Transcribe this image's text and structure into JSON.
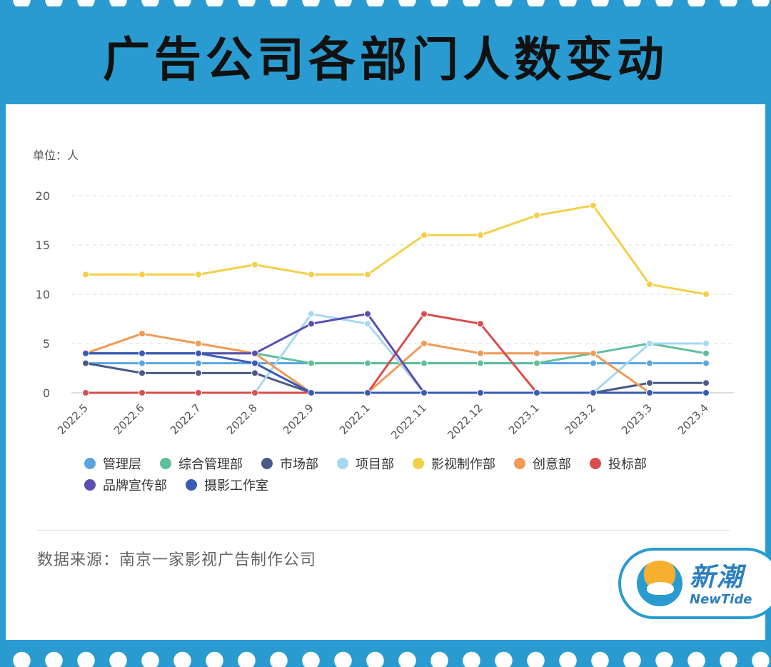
{
  "header": {
    "title": "广告公司各部门人数变动"
  },
  "footer": {
    "source": "数据来源：南京一家影视广告制作公司"
  },
  "logo": {
    "cn": "新潮",
    "en": "NewTide"
  },
  "chart_data": {
    "type": "line",
    "unit_label": "单位：人",
    "categories": [
      "2022.5",
      "2022.6",
      "2022.7",
      "2022.8",
      "2022.9",
      "2022.1",
      "2022.11",
      "2022.12",
      "2023.1",
      "2023.2",
      "2023.3",
      "2023.4"
    ],
    "ylim": [
      0,
      20
    ],
    "yticks": [
      "0",
      "5",
      "10",
      "15",
      "20"
    ],
    "grid": true,
    "legend_position": "bottom",
    "series": [
      {
        "name": "管理层",
        "color": "#5aa5e0",
        "values": [
          3,
          3,
          3,
          3,
          3,
          3,
          3,
          3,
          3,
          3,
          3,
          3
        ]
      },
      {
        "name": "综合管理部",
        "color": "#5fbf9a",
        "values": [
          4,
          4,
          4,
          4,
          3,
          3,
          3,
          3,
          3,
          4,
          5,
          4
        ]
      },
      {
        "name": "市场部",
        "color": "#4a5a85",
        "values": [
          3,
          2,
          2,
          2,
          0,
          0,
          0,
          0,
          0,
          0,
          1,
          1
        ]
      },
      {
        "name": "项目部",
        "color": "#a6d9ef",
        "values": [
          0,
          0,
          0,
          0,
          8,
          7,
          0,
          0,
          0,
          0,
          5,
          5
        ]
      },
      {
        "name": "影视制作部",
        "color": "#f3d04a",
        "values": [
          12,
          12,
          12,
          13,
          12,
          12,
          16,
          16,
          18,
          19,
          11,
          10
        ]
      },
      {
        "name": "创意部",
        "color": "#f09a55",
        "values": [
          4,
          6,
          5,
          4,
          0,
          0,
          5,
          4,
          4,
          4,
          0,
          0
        ]
      },
      {
        "name": "投标部",
        "color": "#d94e4e",
        "values": [
          0,
          0,
          0,
          0,
          0,
          0,
          8,
          7,
          0,
          0,
          0,
          0
        ]
      },
      {
        "name": "品牌宣传部",
        "color": "#5a4fb0",
        "values": [
          4,
          4,
          4,
          4,
          7,
          8,
          0,
          0,
          0,
          0,
          0,
          0
        ]
      },
      {
        "name": "摄影工作室",
        "color": "#3a5ab5",
        "values": [
          4,
          4,
          4,
          3,
          0,
          0,
          0,
          0,
          0,
          0,
          0,
          0
        ]
      }
    ]
  }
}
